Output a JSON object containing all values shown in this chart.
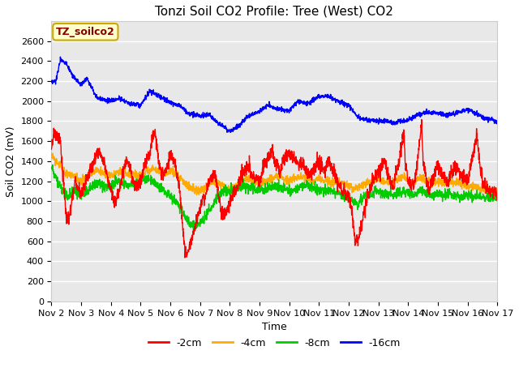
{
  "title": "Tonzi Soil CO2 Profile: Tree (West) CO2",
  "ylabel": "Soil CO2 (mV)",
  "xlabel": "Time",
  "legend_label": "TZ_soilco2",
  "series_labels": [
    "-2cm",
    "-4cm",
    "-8cm",
    "-16cm"
  ],
  "series_colors": [
    "#ff0000",
    "#ffaa00",
    "#00cc00",
    "#0000ff"
  ],
  "fig_bg": "#ffffff",
  "plot_bg": "#e8e8e8",
  "grid_color": "#ffffff",
  "ylim": [
    0,
    2800
  ],
  "yticks": [
    0,
    200,
    400,
    600,
    800,
    1000,
    1200,
    1400,
    1600,
    1800,
    2000,
    2200,
    2400,
    2600
  ],
  "x_labels": [
    "Nov 2",
    "Nov 3",
    "Nov 4",
    "Nov 5",
    "Nov 6",
    "Nov 7",
    "Nov 8",
    "Nov 9",
    "Nov 10",
    "Nov 11",
    "Nov 12",
    "Nov 13",
    "Nov 14",
    "Nov 15",
    "Nov 16",
    "Nov 17"
  ],
  "title_fontsize": 11,
  "axis_label_fontsize": 9,
  "tick_fontsize": 8,
  "legend_box_facecolor": "#ffffcc",
  "legend_box_edgecolor": "#ccaa00",
  "legend_text_color": "#880000",
  "line_width": 1.0
}
